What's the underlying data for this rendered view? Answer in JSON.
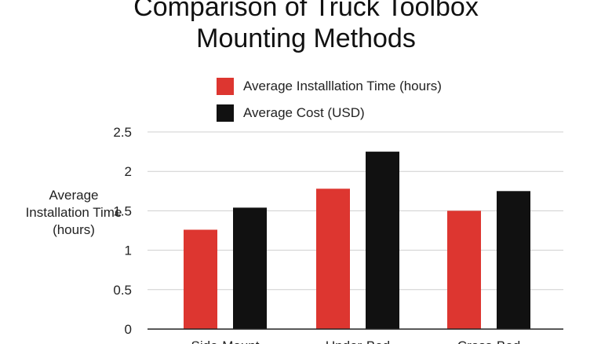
{
  "title_line1": "Comparison of Truck Toolbox",
  "title_line2": "Mounting Methods",
  "colors": {
    "series1": "#dd3630",
    "series2": "#111111",
    "grid": "#cfcfcf",
    "axis": "#222222"
  },
  "chart_data": {
    "type": "bar",
    "title": "Comparison of Truck Toolbox Mounting Methods",
    "ylabel": "Average Installation Time (hours)",
    "xlabel": "",
    "categories": [
      "Side-Mount",
      "Under-Bed",
      "Cross-Bed"
    ],
    "series": [
      {
        "name": "Average Installlation Time (hours)",
        "values": [
          1.26,
          1.78,
          1.5
        ]
      },
      {
        "name": "Average Cost (USD)",
        "values": [
          1.54,
          2.25,
          1.75
        ]
      }
    ],
    "yticks": [
      "0",
      "0.5",
      "1",
      "1.5",
      "2",
      "2.5"
    ],
    "ylim": [
      0,
      2.5
    ],
    "grid": true,
    "legend_position": "top"
  }
}
